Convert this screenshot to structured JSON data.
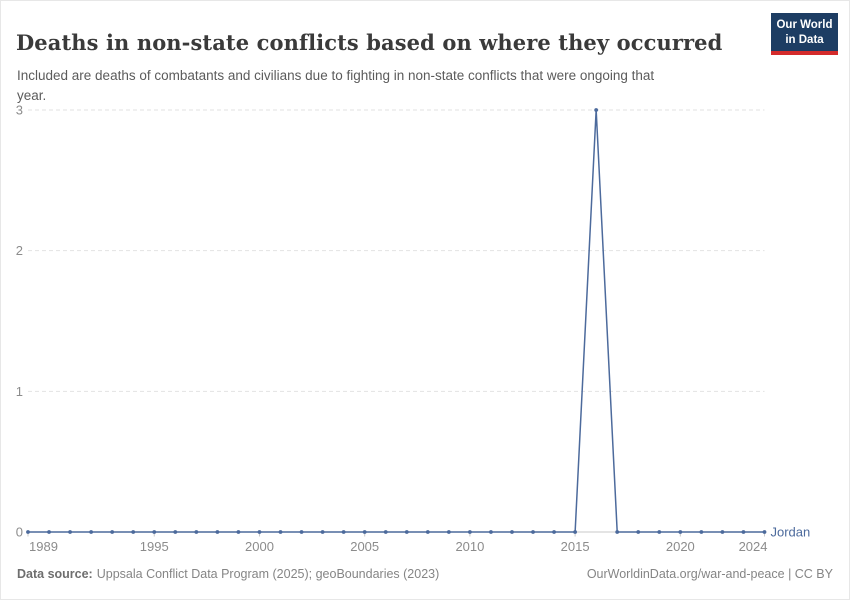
{
  "header": {
    "title": "Deaths in non-state conflicts based on where they occurred",
    "subtitle": "Included are deaths of combatants and civilians due to fighting in non-state conflicts that were ongoing that year.",
    "logo": {
      "line1": "Our World",
      "line2": "in Data"
    }
  },
  "chart_data": {
    "type": "line",
    "title": "Deaths in non-state conflicts based on where they occurred",
    "entity": "Jordan",
    "x": [
      1989,
      1990,
      1991,
      1992,
      1993,
      1994,
      1995,
      1996,
      1997,
      1998,
      1999,
      2000,
      2001,
      2002,
      2003,
      2004,
      2005,
      2006,
      2007,
      2008,
      2009,
      2010,
      2011,
      2012,
      2013,
      2014,
      2015,
      2016,
      2017,
      2018,
      2019,
      2020,
      2021,
      2022,
      2023,
      2024
    ],
    "series": [
      {
        "name": "Jordan",
        "values": [
          0,
          0,
          0,
          0,
          0,
          0,
          0,
          0,
          0,
          0,
          0,
          0,
          0,
          0,
          0,
          0,
          0,
          0,
          0,
          0,
          0,
          0,
          0,
          0,
          0,
          0,
          0,
          3,
          0,
          0,
          0,
          0,
          0,
          0,
          0,
          0
        ]
      }
    ],
    "ylim": [
      0,
      3
    ],
    "yticks": [
      0,
      1,
      2,
      3
    ],
    "xticks": [
      1989,
      1995,
      2000,
      2005,
      2010,
      2015,
      2020,
      2024
    ],
    "xlabel": "",
    "ylabel": "",
    "grid": "horizontal-dashed",
    "legend_position": "end-of-line",
    "colors": {
      "line": "#4c6a9c",
      "grid": "#e2e2e2",
      "axis": "#c9c9c9",
      "tick_label": "#8c8c8c"
    }
  },
  "footer": {
    "source_label": "Data source:",
    "source_text": "Uppsala Conflict Data Program (2025); geoBoundaries (2023)",
    "link_text": "OurWorldinData.org/war-and-peace | CC BY"
  }
}
